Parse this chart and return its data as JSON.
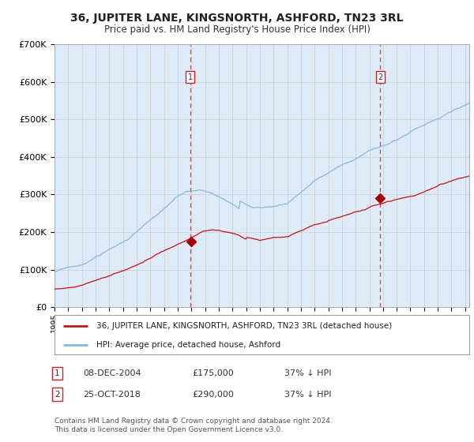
{
  "title": "36, JUPITER LANE, KINGSNORTH, ASHFORD, TN23 3RL",
  "subtitle": "Price paid vs. HM Land Registry's House Price Index (HPI)",
  "background_color": "#ffffff",
  "plot_bg_color": "#ddeaf7",
  "hpi_color": "#87b8e0",
  "price_color": "#cc1111",
  "marker_color": "#aa0000",
  "vline_color": "#ee4444",
  "purchase1_year": 2004.92,
  "purchase1_price": 175000,
  "purchase1_label": "08-DEC-2004",
  "purchase1_hpi_pct": "37%",
  "purchase2_year": 2018.8,
  "purchase2_price": 290000,
  "purchase2_label": "25-OCT-2018",
  "purchase2_hpi_pct": "37%",
  "ylim": [
    0,
    700000
  ],
  "xlim_start": 1995,
  "xlim_end": 2025.3,
  "legend_label1": "36, JUPITER LANE, KINGSNORTH, ASHFORD, TN23 3RL (detached house)",
  "legend_label2": "HPI: Average price, detached house, Ashford",
  "footnote": "Contains HM Land Registry data © Crown copyright and database right 2024.\nThis data is licensed under the Open Government Licence v3.0.",
  "yticks": [
    0,
    100000,
    200000,
    300000,
    400000,
    500000,
    600000,
    700000
  ],
  "ytick_labels": [
    "£0",
    "£100K",
    "£200K",
    "£300K",
    "£400K",
    "£500K",
    "£600K",
    "£700K"
  ]
}
